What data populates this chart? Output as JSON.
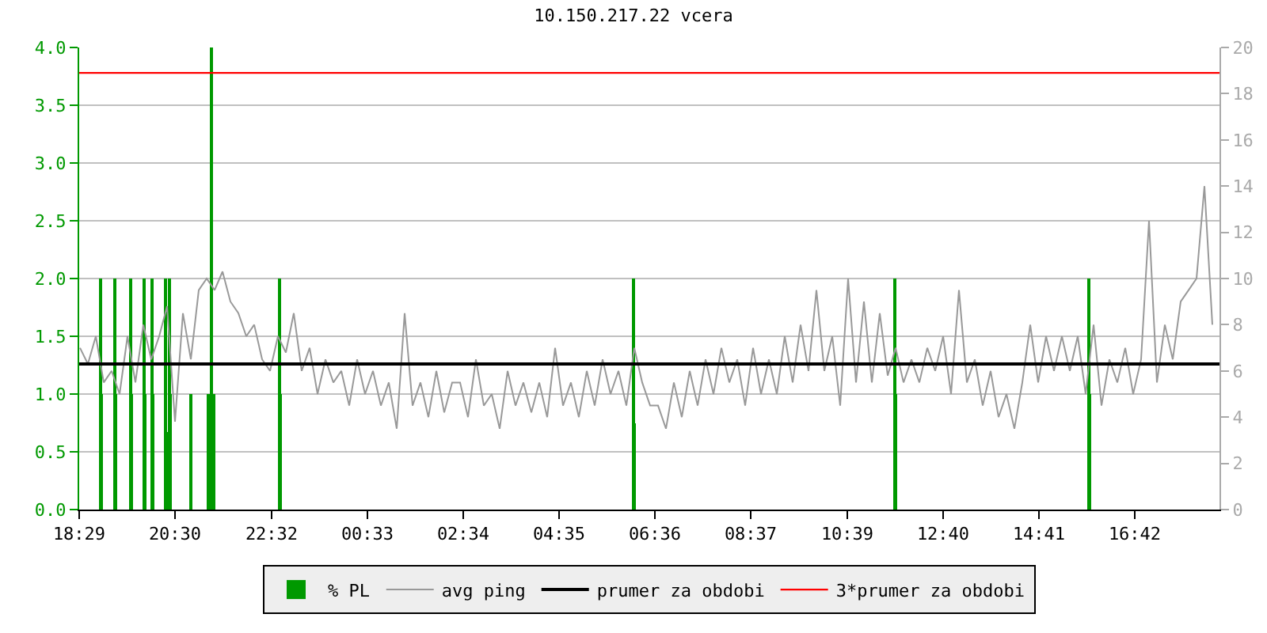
{
  "chart_data": {
    "type": "line",
    "title": "10.150.217.22 vcera",
    "xlim": [
      "--01-01T18:29",
      "--01-02T18:29"
    ],
    "xticks": [
      {
        "value": "--01-01T18:29",
        "label": "18:29"
      },
      {
        "value": "--01-01T20:30",
        "label": "20:30"
      },
      {
        "value": "--01-01T22:32",
        "label": "22:32"
      },
      {
        "value": "--01-02T00:33",
        "label": "00:33"
      },
      {
        "value": "--01-02T02:34",
        "label": "02:34"
      },
      {
        "value": "--01-02T04:35",
        "label": "04:35"
      },
      {
        "value": "--01-02T06:36",
        "label": "06:36"
      },
      {
        "value": "--01-02T08:37",
        "label": "08:37"
      },
      {
        "value": "--01-02T10:39",
        "label": "10:39"
      },
      {
        "value": "--01-02T12:40",
        "label": "12:40"
      },
      {
        "value": "--01-02T14:41",
        "label": "14:41"
      },
      {
        "value": "--01-02T16:42",
        "label": "16:42"
      }
    ],
    "ylim": [
      0,
      4
    ],
    "yticks": [
      {
        "value": 0,
        "label": "0.0"
      },
      {
        "value": 0.5,
        "label": "0.5"
      },
      {
        "value": 1,
        "label": "1.0"
      },
      {
        "value": 1.5,
        "label": "1.5"
      },
      {
        "value": 2,
        "label": "2.0"
      },
      {
        "value": 2.5,
        "label": "2.5"
      },
      {
        "value": 3,
        "label": "3.0"
      },
      {
        "value": 3.5,
        "label": "3.5"
      },
      {
        "value": 4,
        "label": "4.0"
      }
    ],
    "y2lim": [
      0,
      20
    ],
    "y2ticks": [
      0,
      2,
      4,
      6,
      8,
      10,
      12,
      14,
      16,
      18,
      20
    ],
    "grid": "y",
    "legend": "bottom",
    "series": [
      {
        "name": "% PL",
        "type": "bar",
        "color": "#009900",
        "x": [
          "--01-01T18:56",
          "--01-01T18:57",
          "--01-01T19:14",
          "--01-01T19:15",
          "--01-01T19:34",
          "--01-01T19:35",
          "--01-01T19:51",
          "--01-01T19:52",
          "--01-01T20:01",
          "--01-01T20:02",
          "--01-01T20:18",
          "--01-01T20:20",
          "--01-01T20:23",
          "--01-01T20:24",
          "--01-01T20:50",
          "--01-01T21:12",
          "--01-01T21:16",
          "--01-01T21:19",
          "--01-01T22:42",
          "--01-01T22:43",
          "--01-02T06:09",
          "--01-02T06:10",
          "--01-02T11:39",
          "--01-02T11:40",
          "--01-02T15:44",
          "--01-02T15:45"
        ],
        "values": [
          2,
          1,
          2,
          1,
          2,
          1,
          2,
          1,
          2,
          1,
          2,
          0.67,
          2,
          1,
          1,
          1,
          4,
          1,
          2,
          1,
          2,
          0.75,
          2,
          1,
          2,
          1
        ]
      },
      {
        "name": "avg ping",
        "axis": "y2",
        "color": "#999999",
        "x": [
          "--01-01T18:30",
          "--01-01T18:40",
          "--01-01T18:50",
          "--01-01T19:00",
          "--01-01T19:10",
          "--01-01T19:20",
          "--01-01T19:30",
          "--01-01T19:40",
          "--01-01T19:50",
          "--01-01T20:00",
          "--01-01T20:10",
          "--01-01T20:20",
          "--01-01T20:30",
          "--01-01T20:40",
          "--01-01T20:50",
          "--01-01T21:00",
          "--01-01T21:10",
          "--01-01T21:20",
          "--01-01T21:30",
          "--01-01T21:40",
          "--01-01T21:50",
          "--01-01T22:00",
          "--01-01T22:10",
          "--01-01T22:20",
          "--01-01T22:30",
          "--01-01T22:40",
          "--01-01T22:50",
          "--01-01T23:00",
          "--01-01T23:10",
          "--01-01T23:20",
          "--01-01T23:30",
          "--01-01T23:40",
          "--01-01T23:50",
          "--01-02T00:00",
          "--01-02T00:10",
          "--01-02T00:20",
          "--01-02T00:30",
          "--01-02T00:40",
          "--01-02T00:50",
          "--01-02T01:00",
          "--01-02T01:10",
          "--01-02T01:20",
          "--01-02T01:30",
          "--01-02T01:40",
          "--01-02T01:50",
          "--01-02T02:00",
          "--01-02T02:10",
          "--01-02T02:20",
          "--01-02T02:30",
          "--01-02T02:40",
          "--01-02T02:50",
          "--01-02T03:00",
          "--01-02T03:10",
          "--01-02T03:20",
          "--01-02T03:30",
          "--01-02T03:40",
          "--01-02T03:50",
          "--01-02T04:00",
          "--01-02T04:10",
          "--01-02T04:20",
          "--01-02T04:30",
          "--01-02T04:40",
          "--01-02T04:50",
          "--01-02T05:00",
          "--01-02T05:10",
          "--01-02T05:20",
          "--01-02T05:30",
          "--01-02T05:40",
          "--01-02T05:50",
          "--01-02T06:00",
          "--01-02T06:10",
          "--01-02T06:20",
          "--01-02T06:30",
          "--01-02T06:40",
          "--01-02T06:50",
          "--01-02T07:00",
          "--01-02T07:10",
          "--01-02T07:20",
          "--01-02T07:30",
          "--01-02T07:40",
          "--01-02T07:50",
          "--01-02T08:00",
          "--01-02T08:10",
          "--01-02T08:20",
          "--01-02T08:30",
          "--01-02T08:40",
          "--01-02T08:50",
          "--01-02T09:00",
          "--01-02T09:10",
          "--01-02T09:20",
          "--01-02T09:30",
          "--01-02T09:40",
          "--01-02T09:50",
          "--01-02T10:00",
          "--01-02T10:10",
          "--01-02T10:20",
          "--01-02T10:30",
          "--01-02T10:40",
          "--01-02T10:50",
          "--01-02T11:00",
          "--01-02T11:10",
          "--01-02T11:20",
          "--01-02T11:30",
          "--01-02T11:40",
          "--01-02T11:50",
          "--01-02T12:00",
          "--01-02T12:10",
          "--01-02T12:20",
          "--01-02T12:30",
          "--01-02T12:40",
          "--01-02T12:50",
          "--01-02T13:00",
          "--01-02T13:10",
          "--01-02T13:20",
          "--01-02T13:30",
          "--01-02T13:40",
          "--01-02T13:50",
          "--01-02T14:00",
          "--01-02T14:10",
          "--01-02T14:20",
          "--01-02T14:30",
          "--01-02T14:40",
          "--01-02T14:50",
          "--01-02T15:00",
          "--01-02T15:10",
          "--01-02T15:20",
          "--01-02T15:30",
          "--01-02T15:40",
          "--01-02T15:50",
          "--01-02T16:00",
          "--01-02T16:10",
          "--01-02T16:20",
          "--01-02T16:30",
          "--01-02T16:40",
          "--01-02T16:50",
          "--01-02T17:00",
          "--01-02T17:10",
          "--01-02T17:20",
          "--01-02T17:30",
          "--01-02T17:40",
          "--01-02T17:50",
          "--01-02T18:00",
          "--01-02T18:10",
          "--01-02T18:20"
        ],
        "values": [
          7,
          6.3,
          7.5,
          5.5,
          6,
          5,
          7.5,
          5.5,
          8,
          6.5,
          7.5,
          8.8,
          3.8,
          8.5,
          6.5,
          9.5,
          10,
          9.5,
          10.3,
          9,
          8.5,
          7.5,
          8,
          6.5,
          6,
          7.5,
          6.8,
          8.5,
          6,
          7,
          5,
          6.5,
          5.5,
          6,
          4.5,
          6.5,
          5,
          6,
          4.5,
          5.5,
          3.5,
          8.5,
          4.5,
          5.5,
          4,
          6,
          4.2,
          5.5,
          5.5,
          4,
          6.5,
          4.5,
          5,
          3.5,
          6,
          4.5,
          5.5,
          4.2,
          5.5,
          4,
          7,
          4.5,
          5.5,
          4,
          6,
          4.5,
          6.5,
          5,
          6,
          4.5,
          7,
          5.5,
          4.5,
          4.5,
          3.5,
          5.5,
          4,
          6,
          4.5,
          6.5,
          5,
          7,
          5.5,
          6.5,
          4.5,
          7,
          5,
          6.5,
          5,
          7.5,
          5.5,
          8,
          6,
          9.5,
          6,
          7.5,
          4.5,
          10,
          5.5,
          9,
          5.5,
          8.5,
          5.8,
          7,
          5.5,
          6.5,
          5.5,
          7,
          6,
          7.5,
          5,
          9.5,
          5.5,
          6.5,
          4.5,
          6,
          4,
          5,
          3.5,
          5.5,
          8,
          5.5,
          7.5,
          6,
          7.5,
          6,
          7.5,
          5,
          8,
          4.5,
          6.5,
          5.5,
          7,
          5,
          6.5,
          12.5,
          5.5,
          8,
          6.5,
          9,
          9.5,
          10,
          14,
          8
        ]
      }
    ],
    "ref_lines": [
      {
        "axis": "y2",
        "value": 6.3,
        "label": "prumer za obdobi",
        "color": "#000000"
      },
      {
        "axis": "y2",
        "value": 18.9,
        "label": "3*prumer za obdobi",
        "color": "#ff0000"
      }
    ]
  }
}
